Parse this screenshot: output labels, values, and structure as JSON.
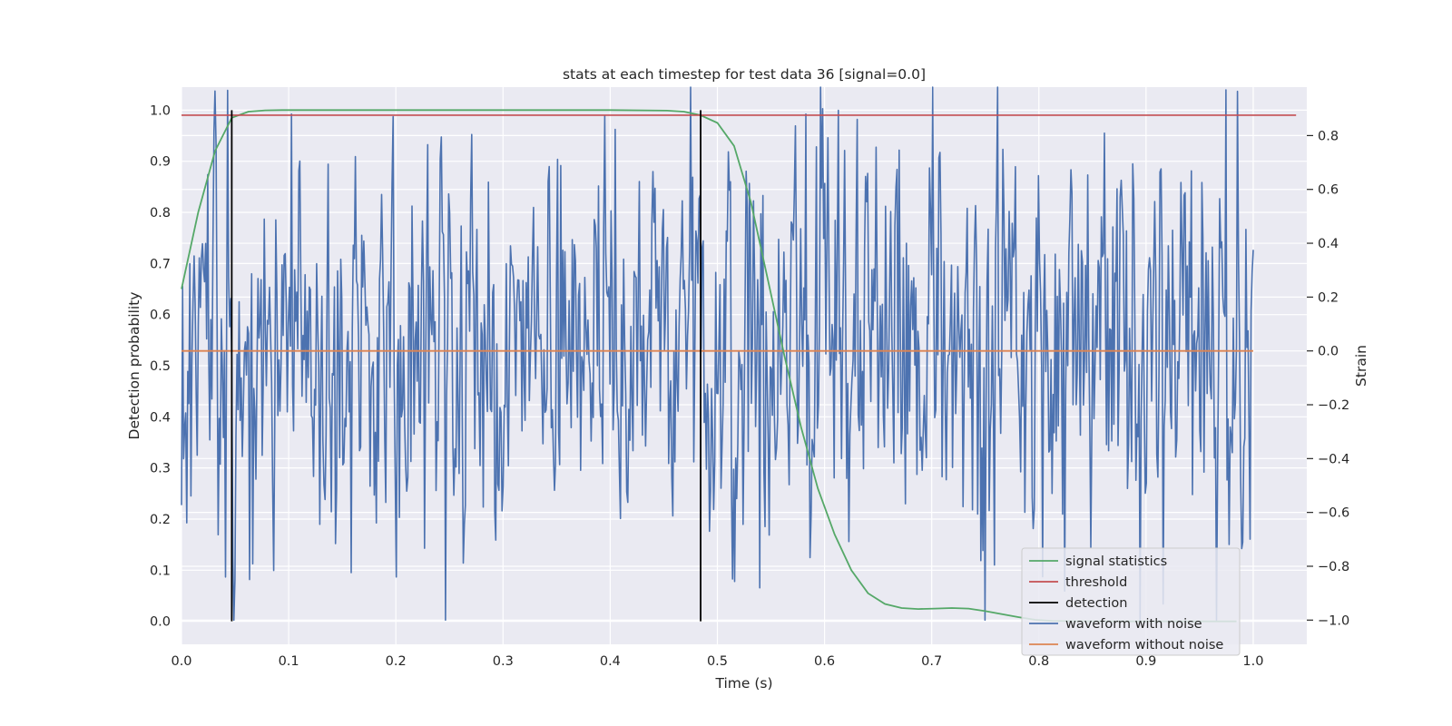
{
  "chart_data": {
    "type": "line",
    "title": "stats at each timestep for test data 36 [signal=0.0]",
    "xlabel": "Time (s)",
    "ylabel_left": "Detection probability",
    "ylabel_right": "Strain",
    "xlim": [
      0.0,
      1.05
    ],
    "ylim_left": [
      -0.045,
      1.045
    ],
    "ylim_right": [
      -1.09,
      0.98
    ],
    "x_ticks": [
      "0.0",
      "0.1",
      "0.2",
      "0.3",
      "0.4",
      "0.5",
      "0.6",
      "0.7",
      "0.8",
      "0.9",
      "1.0"
    ],
    "y_left_ticks": [
      "0.0",
      "0.1",
      "0.2",
      "0.3",
      "0.4",
      "0.5",
      "0.6",
      "0.7",
      "0.8",
      "0.9",
      "1.0"
    ],
    "y_right_ticks": [
      "−1.0",
      "−0.8",
      "−0.6",
      "−0.4",
      "−0.2",
      "0.0",
      "0.2",
      "0.4",
      "0.6",
      "0.8"
    ],
    "grid": true,
    "legend_position": "lower-right",
    "colors": {
      "background": "#eaeaf2",
      "grid": "#ffffff",
      "signal_statistics": "#55a868",
      "threshold": "#c44e52",
      "detection": "#000000",
      "waveform_with_noise": "#4c72b0",
      "waveform_without_noise": "#dd8452"
    },
    "series": [
      {
        "name": "signal statistics",
        "axis": "left",
        "x": [
          0.0,
          0.0156,
          0.0313,
          0.0469,
          0.0625,
          0.0781,
          0.0938,
          0.1094,
          0.125,
          0.2,
          0.3,
          0.4,
          0.4531,
          0.4688,
          0.4844,
          0.5,
          0.5156,
          0.5313,
          0.5469,
          0.5625,
          0.5781,
          0.5938,
          0.6094,
          0.625,
          0.6406,
          0.6563,
          0.6719,
          0.6875,
          0.7031,
          0.7188,
          0.7344,
          0.75,
          0.7656,
          0.7813,
          0.7969,
          0.8125,
          0.8281,
          0.8438,
          0.8594,
          0.875,
          0.8906,
          0.9063,
          0.9219,
          0.9375,
          0.9531,
          0.9688,
          0.9844
        ],
        "y": [
          0.65,
          0.8,
          0.92,
          0.985,
          0.997,
          0.9995,
          1.0,
          1.0,
          1.0,
          1.0,
          1.0,
          1.0,
          0.999,
          0.997,
          0.99,
          0.975,
          0.93,
          0.82,
          0.67,
          0.52,
          0.38,
          0.26,
          0.17,
          0.1,
          0.055,
          0.034,
          0.026,
          0.024,
          0.025,
          0.026,
          0.025,
          0.02,
          0.014,
          0.008,
          0.003,
          0.001,
          0.0005,
          0.0002,
          0.0001,
          0.0,
          0.0,
          0.0,
          0.0,
          0.0,
          0.0,
          0.0,
          0.0
        ]
      },
      {
        "name": "threshold",
        "axis": "left",
        "x": [
          0.0,
          1.04
        ],
        "y": [
          0.99,
          0.99
        ]
      },
      {
        "name": "detection",
        "axis": "left",
        "x": [
          0.0469,
          0.4844
        ],
        "ymin": 0.0,
        "ymax": 1.0
      },
      {
        "name": "waveform with noise",
        "axis": "right",
        "x_start": 0.0,
        "x_end": 1.0,
        "samples": 1024,
        "y_summary": {
          "approx_range": [
            -1.0,
            0.98
          ],
          "notable_peaks": [
            {
              "x": 0.75,
              "y": 0.98
            },
            {
              "x": 0.975,
              "y": 0.97
            },
            {
              "x": 0.75,
              "y": -1.0
            },
            {
              "x": 0.103,
              "y": 0.88
            },
            {
              "x": 0.583,
              "y": 0.88
            },
            {
              "x": 0.2,
              "y": -0.84
            },
            {
              "x": 0.54,
              "y": -0.88
            },
            {
              "x": 0.916,
              "y": -0.94
            }
          ]
        }
      },
      {
        "name": "waveform without noise",
        "axis": "right",
        "x": [
          0.0,
          1.0
        ],
        "y": [
          0.0,
          0.0
        ]
      }
    ],
    "legend": [
      "signal statistics",
      "threshold",
      "detection",
      "waveform with noise",
      "waveform without noise"
    ]
  }
}
